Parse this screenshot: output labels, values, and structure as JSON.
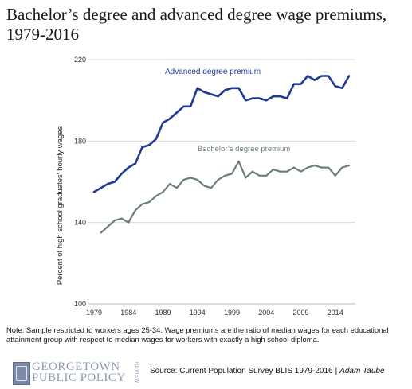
{
  "title": "Bachelor’s degree and advanced degree wage premiums, 1979-2016",
  "note": "Note: Sample restricted to workers ages 25-34. Wage premiums are the ratio of median wages for each educational attainment group with respect to median wages for workers with exactly a high school diploma.",
  "footer": {
    "logo_line1": "GEORGETOWN",
    "logo_line2": "PUBLIC POLICY",
    "logo_review": "REVIEW",
    "source": "Source: Current Population Survey BLIS 1979-2016",
    "separator": "|",
    "author": "Adam Taube"
  },
  "colors": {
    "advanced": "#1f3a93",
    "bachelor": "#6b7f78",
    "grid": "#d9d9d9",
    "text": "#333333"
  },
  "chart_data": {
    "type": "line",
    "title": "Bachelor’s degree and advanced degree wage premiums, 1979-2016",
    "ylabel": "Percent of high school graduates' hourly wages",
    "xlabel": "",
    "xlim": [
      1979,
      2016
    ],
    "ylim": [
      100,
      220
    ],
    "x_ticks": [
      1979,
      1984,
      1989,
      1994,
      1999,
      2004,
      2009,
      2014
    ],
    "y_ticks": [
      100,
      140,
      180,
      220
    ],
    "grid": "horizontal",
    "series": [
      {
        "name": "Advanced degree premium",
        "color": "#1f3a93",
        "x": [
          1979,
          1980,
          1981,
          1982,
          1983,
          1984,
          1985,
          1986,
          1987,
          1988,
          1989,
          1990,
          1991,
          1992,
          1993,
          1994,
          1995,
          1996,
          1997,
          1998,
          1999,
          2000,
          2001,
          2002,
          2003,
          2004,
          2005,
          2006,
          2007,
          2008,
          2009,
          2010,
          2011,
          2012,
          2013,
          2014,
          2015,
          2016
        ],
        "values": [
          155,
          157,
          159,
          160,
          164,
          167,
          169,
          177,
          178,
          181,
          189,
          191,
          194,
          197,
          197,
          206,
          204,
          203,
          202,
          205,
          206,
          206,
          200,
          201,
          201,
          200,
          202,
          202,
          201,
          208,
          208,
          212,
          210,
          212,
          212,
          207,
          206,
          212
        ]
      },
      {
        "name": "Bachelor’s degree premium",
        "color": "#6b7f78",
        "x": [
          1980,
          1981,
          1982,
          1983,
          1984,
          1985,
          1986,
          1987,
          1988,
          1989,
          1990,
          1991,
          1992,
          1993,
          1994,
          1995,
          1996,
          1997,
          1998,
          1999,
          2000,
          2001,
          2002,
          2003,
          2004,
          2005,
          2006,
          2007,
          2008,
          2009,
          2010,
          2011,
          2012,
          2013,
          2014,
          2015,
          2016
        ],
        "values": [
          135,
          138,
          141,
          142,
          140,
          146,
          149,
          150,
          153,
          155,
          159,
          157,
          161,
          162,
          161,
          158,
          157,
          161,
          163,
          164,
          170,
          162,
          165,
          163,
          163,
          166,
          165,
          165,
          167,
          165,
          167,
          168,
          167,
          167,
          163,
          167,
          168
        ]
      }
    ]
  }
}
